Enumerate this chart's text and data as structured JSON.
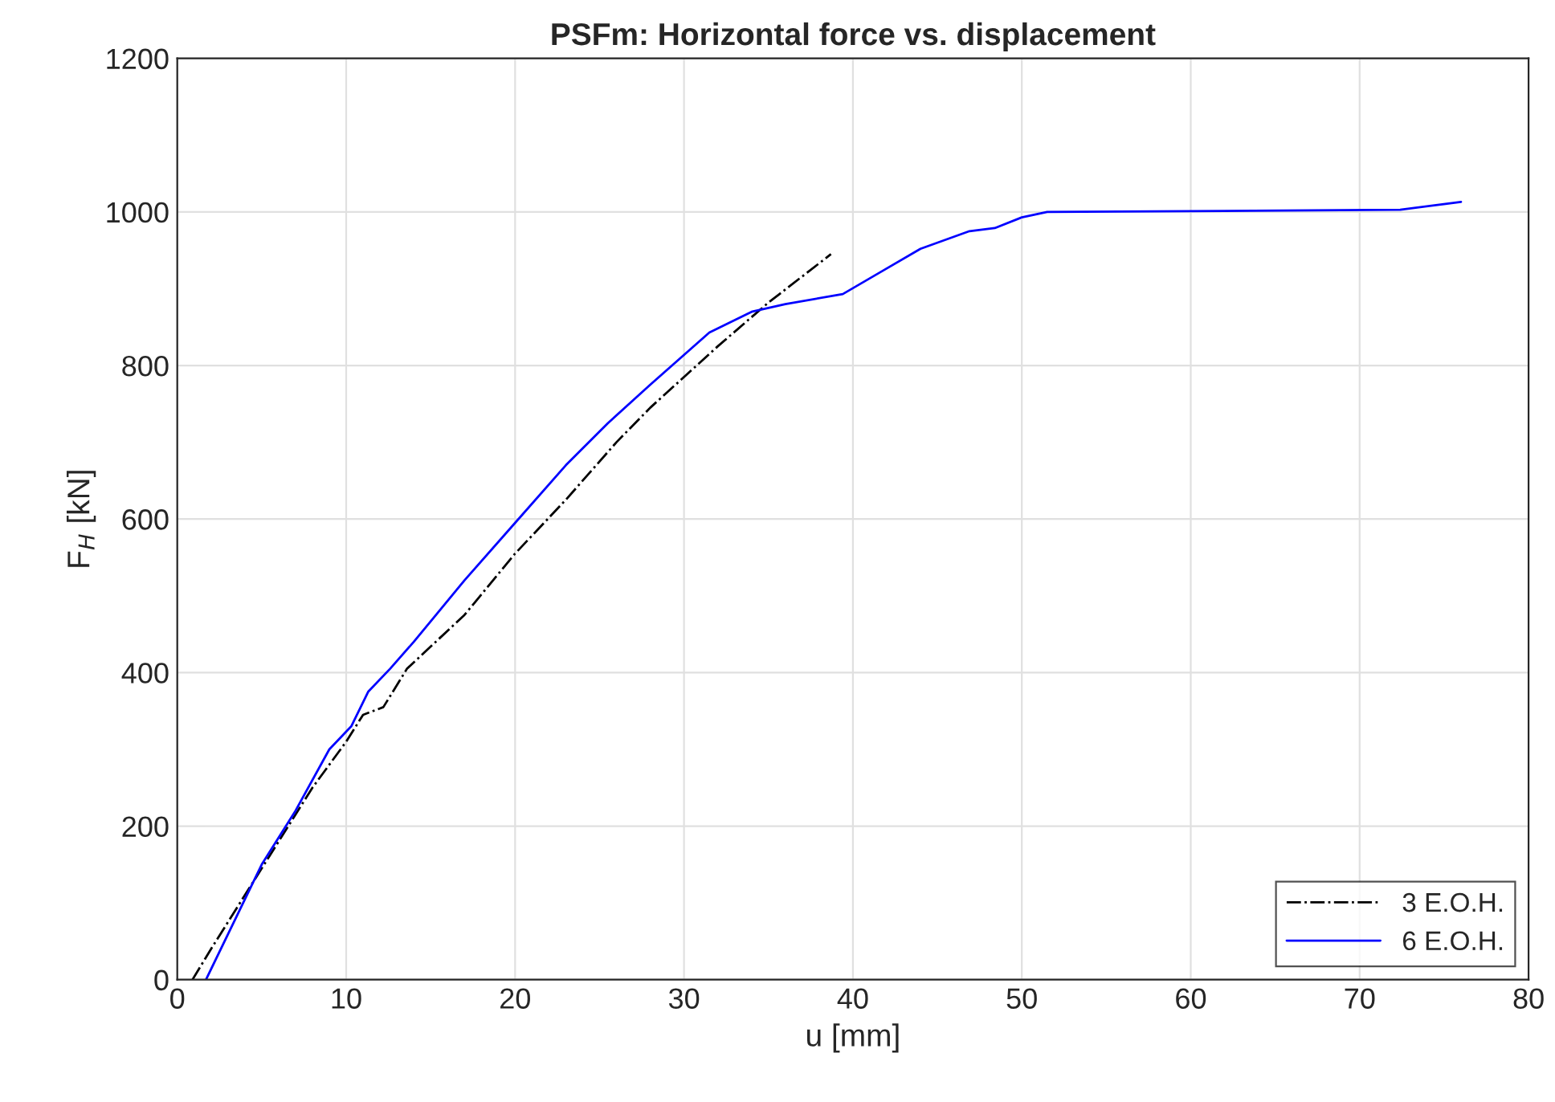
{
  "chart_data": {
    "type": "line",
    "title": "PSFm: Horizontal force vs. displacement",
    "xlabel": "u [mm]",
    "ylabel": "F$_{H}$ [kN]",
    "xlim": [
      0,
      80
    ],
    "ylim": [
      0,
      1200
    ],
    "xticks": [
      0,
      10,
      20,
      30,
      40,
      50,
      60,
      70,
      80
    ],
    "yticks": [
      0,
      200,
      400,
      600,
      800,
      1000,
      1200
    ],
    "grid": true,
    "legend": "bottom right",
    "series": [
      {
        "name": "3 E.O.H.",
        "color": "#000000",
        "line_style": "dashdot",
        "x": [
          0.9,
          2,
          4,
          6,
          8,
          10,
          11,
          12.2,
          13.6,
          17,
          20,
          23,
          26,
          28,
          32,
          35,
          38.7
        ],
        "values": [
          0,
          40,
          110,
          180,
          250,
          310,
          345,
          355,
          405,
          475,
          555,
          625,
          700,
          745,
          825,
          882,
          945
        ]
      },
      {
        "name": "6 E.O.H.",
        "color": "#0000ff",
        "line_style": "solid",
        "x": [
          1.7,
          5,
          7,
          9,
          10.3,
          11.3,
          12.6,
          14,
          17,
          20,
          23,
          25.5,
          28,
          31.5,
          34,
          36,
          39.4,
          41.5,
          44,
          46.9,
          48.4,
          50,
          51.5,
          60,
          72.4,
          76
        ],
        "values": [
          0,
          150,
          220,
          300,
          330,
          375,
          405,
          440,
          520,
          595,
          670,
          725,
          775,
          843,
          870,
          880,
          893,
          920,
          952,
          975,
          979,
          993,
          1000,
          1001,
          1003,
          1013
        ]
      }
    ]
  }
}
